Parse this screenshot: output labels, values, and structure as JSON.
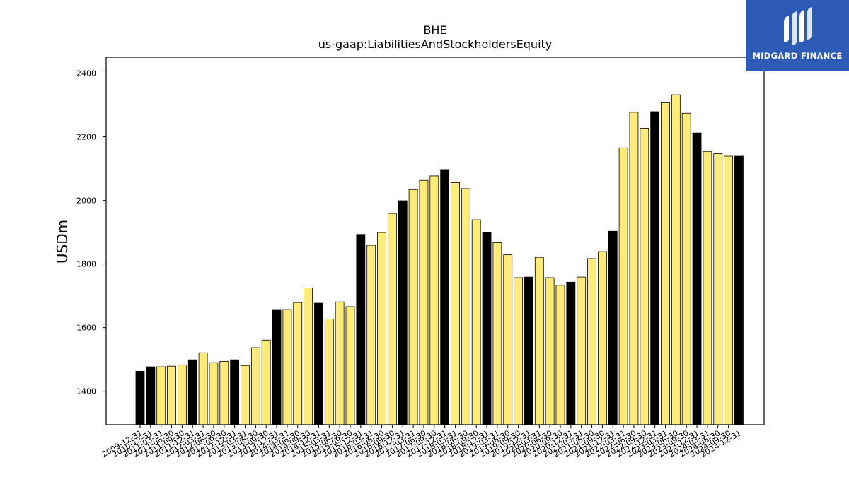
{
  "brand": {
    "name": "MIDGARD FINANCE",
    "background": "#2d5ab2"
  },
  "chart_data": {
    "type": "bar",
    "title": "BHE",
    "subtitle": "us-gaap:LiabilitiesAndStockholdersEquity",
    "xlabel": "",
    "ylabel": "USDm",
    "ylim": [
      1295,
      2450
    ],
    "yticks": [
      1400,
      1600,
      1800,
      2000,
      2200,
      2400
    ],
    "grid": false,
    "colors": {
      "annual": "#000000",
      "quarterly": "#ffeb7a",
      "edge": "#000000"
    },
    "categories": [
      "2009-12-31",
      "2010-12-31",
      "2011-03-31",
      "2011-06-30",
      "2011-09-30",
      "2011-12-31",
      "2012-03-31",
      "2012-06-30",
      "2012-09-30",
      "2012-12-31",
      "2013-03-31",
      "2013-06-30",
      "2013-09-30",
      "2013-12-31",
      "2014-03-31",
      "2014-06-30",
      "2014-09-30",
      "2014-12-31",
      "2015-03-31",
      "2015-06-30",
      "2015-09-30",
      "2015-12-31",
      "2016-03-31",
      "2016-06-30",
      "2016-09-30",
      "2016-12-31",
      "2017-03-31",
      "2017-06-30",
      "2017-09-30",
      "2017-12-31",
      "2018-03-31",
      "2018-06-30",
      "2018-09-30",
      "2018-12-31",
      "2019-03-31",
      "2019-06-30",
      "2019-09-30",
      "2019-12-31",
      "2020-03-31",
      "2020-06-30",
      "2020-09-30",
      "2020-12-31",
      "2021-03-31",
      "2021-06-30",
      "2021-09-30",
      "2021-12-31",
      "2022-03-31",
      "2022-06-30",
      "2022-09-30",
      "2022-12-31",
      "2023-03-31",
      "2023-06-30",
      "2023-09-30",
      "2023-12-31",
      "2024-03-31",
      "2024-06-30",
      "2024-09-30",
      "2024-12-31"
    ],
    "values": [
      1463,
      1477,
      1477,
      1479,
      1483,
      1499,
      1521,
      1490,
      1494,
      1499,
      1481,
      1537,
      1561,
      1657,
      1657,
      1679,
      1725,
      1677,
      1627,
      1681,
      1666,
      1893,
      1859,
      1899,
      1959,
      1999,
      2034,
      2063,
      2077,
      2097,
      2056,
      2037,
      1939,
      1899,
      1867,
      1829,
      1757,
      1759,
      1821,
      1757,
      1733,
      1743,
      1759,
      1817,
      1839,
      1903,
      2165,
      2277,
      2227,
      2279,
      2307,
      2332,
      2274,
      2212,
      2154,
      2147,
      2139,
      2139
    ],
    "annual": [
      true,
      true,
      false,
      false,
      false,
      true,
      false,
      false,
      false,
      true,
      false,
      false,
      false,
      true,
      false,
      false,
      false,
      true,
      false,
      false,
      false,
      true,
      false,
      false,
      false,
      true,
      false,
      false,
      false,
      true,
      false,
      false,
      false,
      true,
      false,
      false,
      false,
      true,
      false,
      false,
      false,
      true,
      false,
      false,
      false,
      true,
      false,
      false,
      false,
      true,
      false,
      false,
      false,
      true,
      false,
      false,
      false,
      true
    ]
  }
}
